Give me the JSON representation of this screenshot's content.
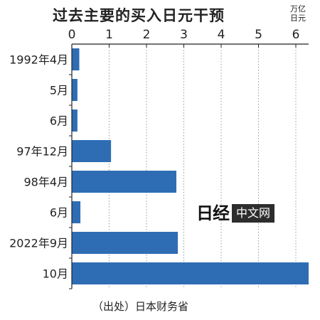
{
  "title": "过去主要的买入日元干预",
  "unit": [
    "万亿",
    "日元"
  ],
  "source": "（出处）日本财务省",
  "watermark": {
    "logo_text": "日经",
    "box_text": "中文网"
  },
  "colors": {
    "bar": "#2e6db4",
    "grid": "#9a9a9a",
    "axis": "#222222"
  },
  "chart_data": {
    "type": "bar",
    "orientation": "horizontal",
    "title": "过去主要的买入日元干预",
    "xlabel": "",
    "ylabel": "",
    "unit": "万亿日元",
    "xlim": [
      0,
      6.3
    ],
    "xticks": [
      0,
      1,
      2,
      3,
      4,
      5,
      6
    ],
    "grid": "vertical-dotted",
    "categories": [
      "1992年4月",
      "5月",
      "6月",
      "97年12月",
      "98年4月",
      "6月",
      "2022年9月",
      "10月"
    ],
    "values": [
      0.2,
      0.15,
      0.15,
      1.05,
      2.8,
      0.23,
      2.84,
      6.35
    ]
  }
}
